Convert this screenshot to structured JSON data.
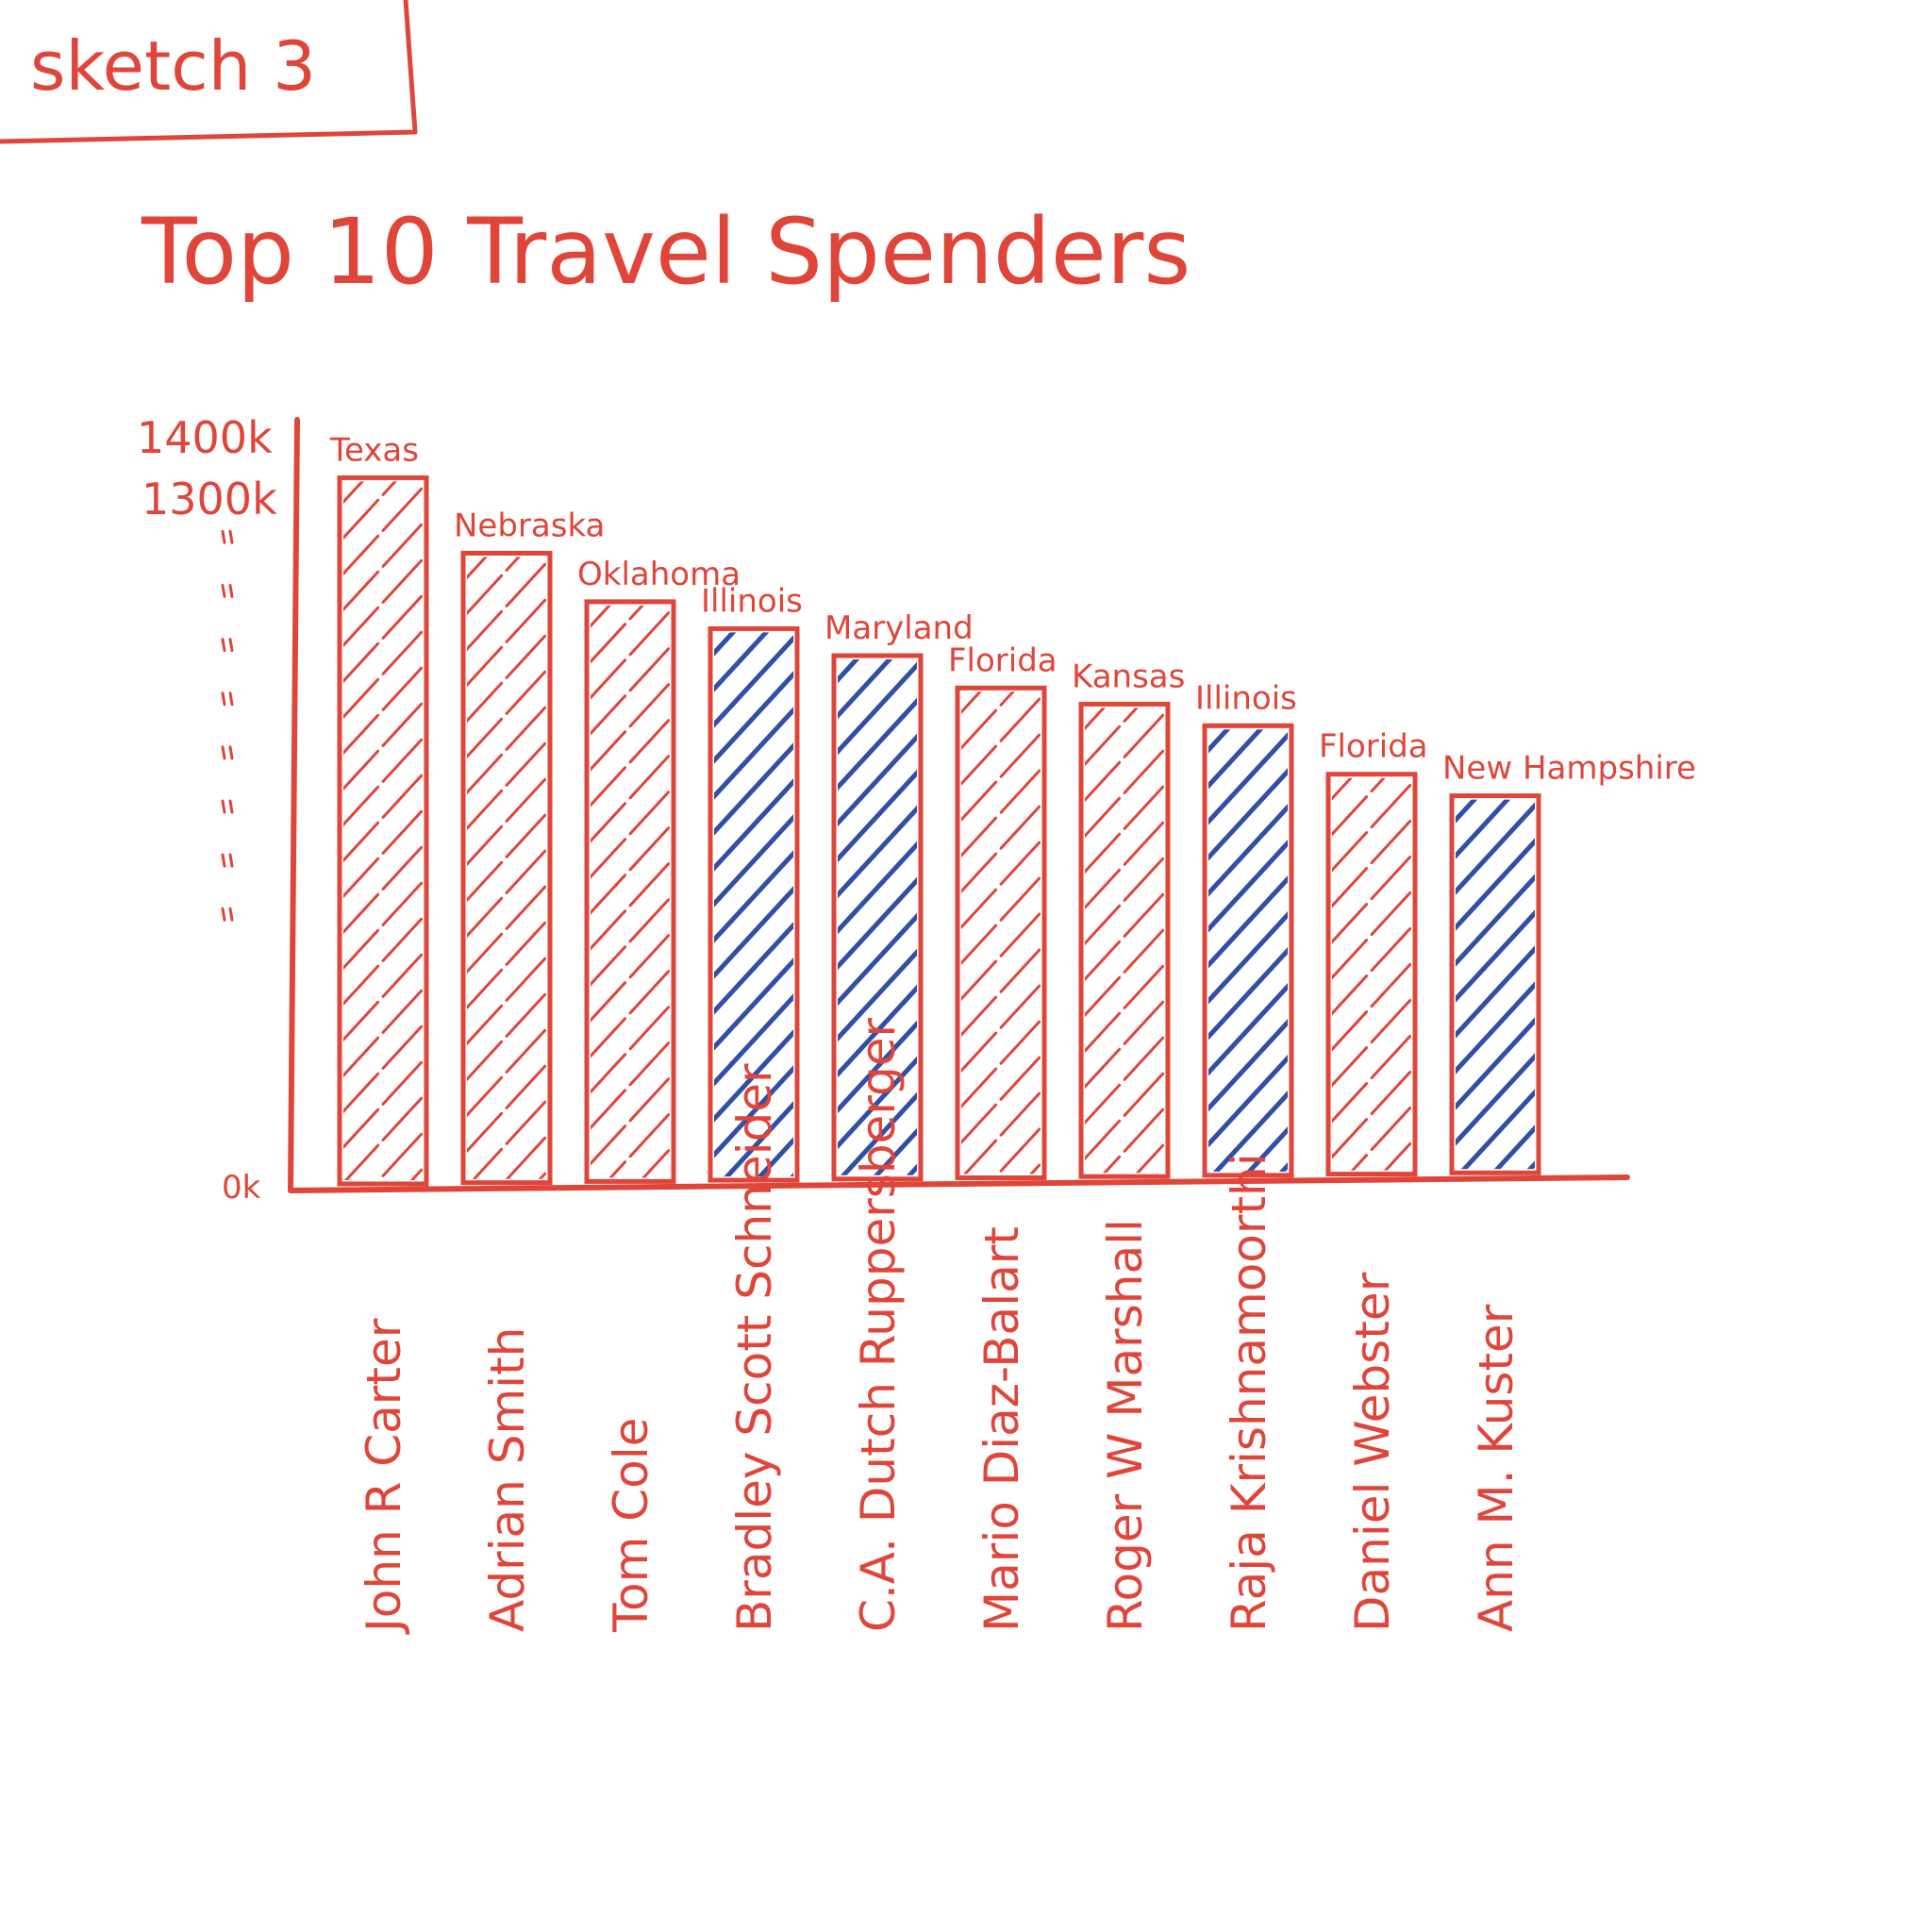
{
  "colors": {
    "ink_red": "#e0453a",
    "ink_blue": "#2f4fa8",
    "background": "#ffffff"
  },
  "sketch_label": "sketch 3",
  "chart_data": {
    "type": "bar",
    "title": "Top 10 Travel Spenders",
    "xlabel": "",
    "ylabel": "",
    "ylim": [
      0,
      1400
    ],
    "y_tick_labels": [
      {
        "value": 1400,
        "label": "1400k"
      },
      {
        "value": 1300,
        "label": "1300k"
      },
      {
        "value": 0,
        "label": "0k"
      }
    ],
    "y_ditto_ticks": [
      1200,
      1100,
      1000,
      900,
      800,
      700,
      600,
      500
    ],
    "categories": [
      "John R Carter",
      "Adrian Smith",
      "Tom Cole",
      "Bradley Scott Schneider",
      "C.A. Dutch Ruppersberger",
      "Mario Diaz-Balart",
      "Roger W Marshall",
      "Raja Krishnamoorthi",
      "Daniel Webster",
      "Ann M. Kuster"
    ],
    "states": [
      "Texas",
      "Nebraska",
      "Oklahoma",
      "Illinois",
      "Maryland",
      "Florida",
      "Kansas",
      "Illinois",
      "Florida",
      "New Hampshire"
    ],
    "party_color": [
      "red",
      "red",
      "red",
      "blue",
      "blue",
      "red",
      "red",
      "blue",
      "red",
      "blue"
    ],
    "values": [
      1310,
      1170,
      1080,
      1030,
      980,
      920,
      890,
      850,
      760,
      720
    ],
    "grid": false,
    "legend": "none"
  }
}
